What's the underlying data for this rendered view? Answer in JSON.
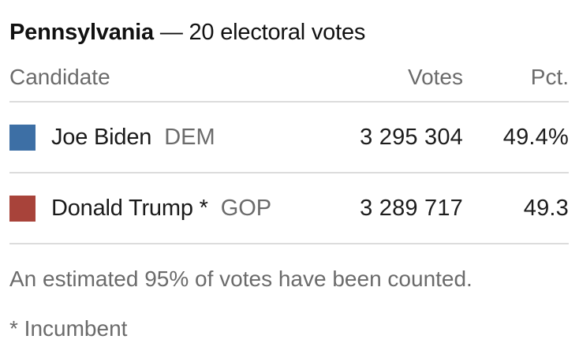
{
  "header": {
    "state": "Pennsylvania",
    "suffix": "— 20 electoral votes"
  },
  "table": {
    "columns": [
      "Candidate",
      "Votes",
      "Pct."
    ],
    "rows": [
      {
        "candidate": "Joe Biden",
        "party": "DEM",
        "votes": "3 295 304",
        "pct": "49.4%",
        "swatch_color": "#3d6fa5"
      },
      {
        "candidate": "Donald Trump *",
        "party": "GOP",
        "votes": "3 289 717",
        "pct": "49.3",
        "swatch_color": "#a8433a"
      }
    ]
  },
  "footer": {
    "counted_note": "An estimated 95% of votes have been counted.",
    "incumbent_note": "* Incumbent"
  },
  "colors": {
    "dem_blue": "#3d6fa5",
    "gop_red": "#a8433a",
    "text_dark": "#1a1a1a",
    "text_gray": "#6b6b6b",
    "divider_gray": "#dcdcdc",
    "background": "#ffffff"
  },
  "chart_data": {
    "type": "table",
    "title": "Pennsylvania — 20 electoral votes",
    "state": "Pennsylvania",
    "electoral_votes": 20,
    "columns": [
      "Candidate",
      "Votes",
      "Pct."
    ],
    "rows": [
      {
        "candidate": "Joe Biden",
        "party": "DEM",
        "votes": 3295304,
        "pct": 49.4,
        "incumbent": false,
        "color": "#3d6fa5"
      },
      {
        "candidate": "Donald Trump",
        "party": "GOP",
        "votes": 3289717,
        "pct": 49.3,
        "incumbent": true,
        "color": "#a8433a"
      }
    ],
    "estimated_counted_pct": 95,
    "notes": [
      "An estimated 95% of votes have been counted.",
      "* Incumbent"
    ]
  }
}
